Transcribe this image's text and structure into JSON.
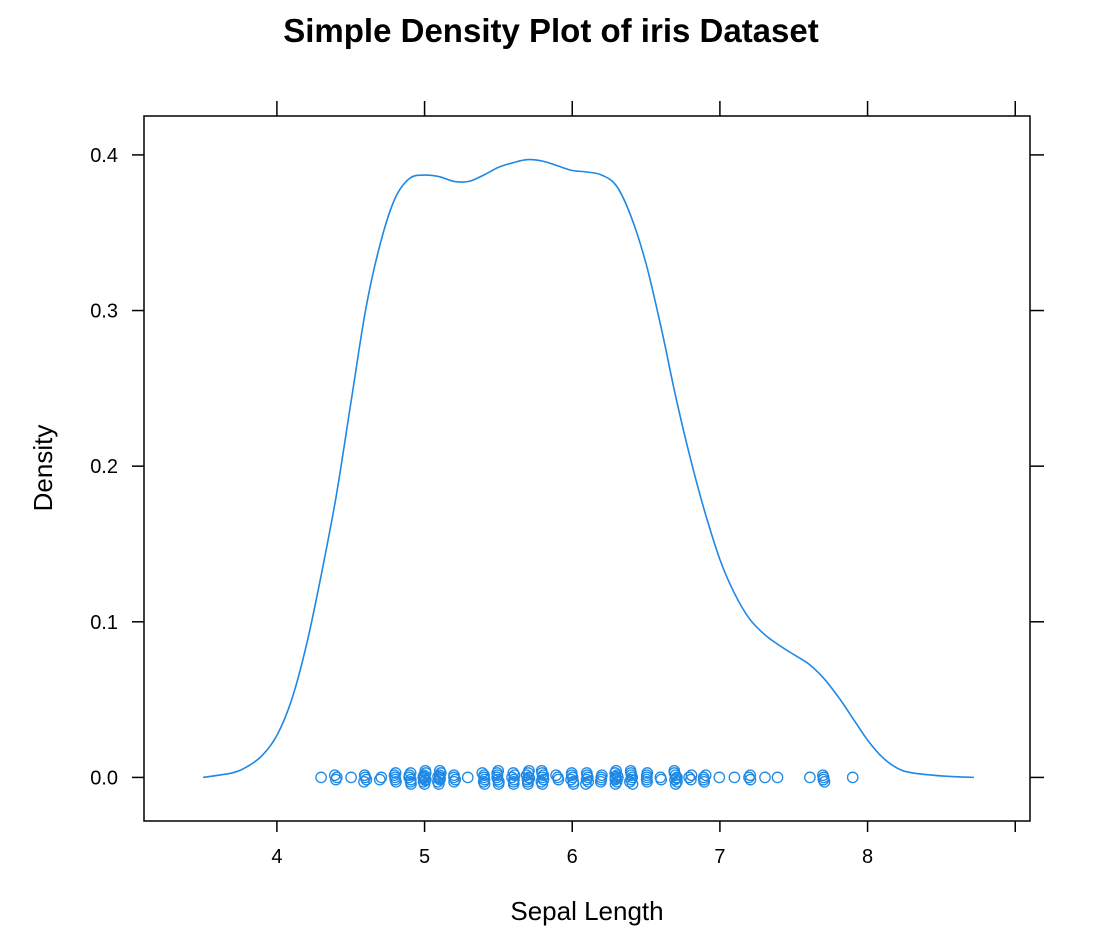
{
  "chart_data": {
    "type": "line",
    "title": "Simple Density Plot of iris Dataset",
    "xlabel": "Sepal Length",
    "ylabel": "Density",
    "xlim": [
      3.1,
      9.1
    ],
    "ylim": [
      -0.028,
      0.425
    ],
    "x_ticks": [
      4,
      5,
      6,
      7,
      8
    ],
    "x_tick_labels": [
      "4",
      "5",
      "6",
      "7",
      "8"
    ],
    "y_ticks": [
      0.0,
      0.1,
      0.2,
      0.3,
      0.4
    ],
    "y_tick_labels": [
      "0.0",
      "0.1",
      "0.2",
      "0.3",
      "0.4"
    ],
    "grid": false,
    "line_color": "#1E88E5",
    "series": [
      {
        "kind": "density-curve",
        "x": [
          3.5,
          3.7,
          3.8,
          3.9,
          4.0,
          4.1,
          4.2,
          4.3,
          4.4,
          4.5,
          4.6,
          4.7,
          4.8,
          4.9,
          5.0,
          5.1,
          5.2,
          5.3,
          5.4,
          5.5,
          5.6,
          5.7,
          5.8,
          5.9,
          6.0,
          6.1,
          6.2,
          6.3,
          6.4,
          6.5,
          6.6,
          6.7,
          6.8,
          6.9,
          7.0,
          7.1,
          7.2,
          7.3,
          7.4,
          7.5,
          7.6,
          7.7,
          7.8,
          7.9,
          8.0,
          8.1,
          8.2,
          8.3,
          8.5,
          8.72
        ],
        "y": [
          0.0,
          0.003,
          0.007,
          0.014,
          0.027,
          0.05,
          0.085,
          0.13,
          0.18,
          0.24,
          0.3,
          0.343,
          0.372,
          0.385,
          0.387,
          0.386,
          0.383,
          0.383,
          0.387,
          0.392,
          0.395,
          0.397,
          0.396,
          0.393,
          0.39,
          0.389,
          0.387,
          0.38,
          0.36,
          0.33,
          0.29,
          0.245,
          0.205,
          0.17,
          0.14,
          0.118,
          0.102,
          0.092,
          0.085,
          0.079,
          0.073,
          0.064,
          0.052,
          0.038,
          0.024,
          0.013,
          0.006,
          0.003,
          0.001,
          0.0
        ]
      },
      {
        "kind": "rug-points",
        "values": [
          4.3,
          4.4,
          4.4,
          4.4,
          4.5,
          4.6,
          4.6,
          4.6,
          4.6,
          4.7,
          4.7,
          4.8,
          4.8,
          4.8,
          4.8,
          4.8,
          4.9,
          4.9,
          4.9,
          4.9,
          4.9,
          4.9,
          5.0,
          5.0,
          5.0,
          5.0,
          5.0,
          5.0,
          5.0,
          5.0,
          5.0,
          5.0,
          5.1,
          5.1,
          5.1,
          5.1,
          5.1,
          5.1,
          5.1,
          5.1,
          5.1,
          5.2,
          5.2,
          5.2,
          5.2,
          5.3,
          5.4,
          5.4,
          5.4,
          5.4,
          5.4,
          5.4,
          5.5,
          5.5,
          5.5,
          5.5,
          5.5,
          5.5,
          5.5,
          5.6,
          5.6,
          5.6,
          5.6,
          5.6,
          5.6,
          5.7,
          5.7,
          5.7,
          5.7,
          5.7,
          5.7,
          5.7,
          5.7,
          5.8,
          5.8,
          5.8,
          5.8,
          5.8,
          5.8,
          5.8,
          5.9,
          5.9,
          5.9,
          6.0,
          6.0,
          6.0,
          6.0,
          6.0,
          6.0,
          6.1,
          6.1,
          6.1,
          6.1,
          6.1,
          6.1,
          6.2,
          6.2,
          6.2,
          6.2,
          6.3,
          6.3,
          6.3,
          6.3,
          6.3,
          6.3,
          6.3,
          6.3,
          6.3,
          6.4,
          6.4,
          6.4,
          6.4,
          6.4,
          6.4,
          6.4,
          6.5,
          6.5,
          6.5,
          6.5,
          6.5,
          6.6,
          6.6,
          6.7,
          6.7,
          6.7,
          6.7,
          6.7,
          6.7,
          6.7,
          6.7,
          6.8,
          6.8,
          6.8,
          6.9,
          6.9,
          6.9,
          6.9,
          7.0,
          7.1,
          7.2,
          7.2,
          7.2,
          7.3,
          7.4,
          7.6,
          7.7,
          7.7,
          7.7,
          7.7,
          7.9
        ]
      }
    ]
  }
}
